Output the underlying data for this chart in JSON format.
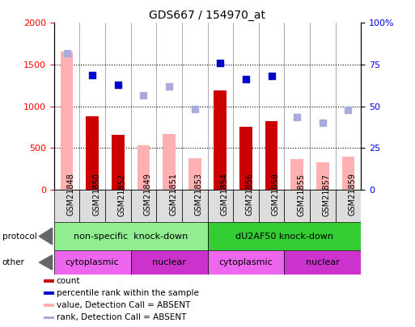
{
  "title": "GDS667 / 154970_at",
  "samples": [
    "GSM21848",
    "GSM21850",
    "GSM21852",
    "GSM21849",
    "GSM21851",
    "GSM21853",
    "GSM21854",
    "GSM21856",
    "GSM21858",
    "GSM21855",
    "GSM21857",
    "GSM21859"
  ],
  "count_values": [
    0,
    880,
    660,
    0,
    0,
    0,
    1190,
    750,
    820,
    0,
    0,
    0
  ],
  "count_absent_values": [
    1650,
    0,
    0,
    530,
    670,
    380,
    0,
    0,
    0,
    370,
    330,
    400
  ],
  "rank_values": [
    0,
    1370,
    1260,
    0,
    0,
    0,
    1520,
    1330,
    1360,
    0,
    0,
    0
  ],
  "rank_absent_values": [
    1640,
    0,
    0,
    1130,
    1240,
    970,
    0,
    0,
    0,
    870,
    800,
    960
  ],
  "ylim_left": [
    0,
    2000
  ],
  "ylim_right": [
    0,
    100
  ],
  "yticks_left": [
    0,
    500,
    1000,
    1500,
    2000
  ],
  "yticks_right": [
    0,
    25,
    50,
    75,
    100
  ],
  "yticklabels_right": [
    "0",
    "25",
    "50",
    "75",
    "100%"
  ],
  "protocol_groups": [
    {
      "label": "non-specific  knock-down",
      "start": 0,
      "end": 6,
      "color": "#90EE90"
    },
    {
      "label": "dU2AF50 knock-down",
      "start": 6,
      "end": 12,
      "color": "#33CC33"
    }
  ],
  "other_groups": [
    {
      "label": "cytoplasmic",
      "start": 0,
      "end": 3,
      "color": "#EE66EE"
    },
    {
      "label": "nuclear",
      "start": 3,
      "end": 6,
      "color": "#CC33CC"
    },
    {
      "label": "cytoplasmic",
      "start": 6,
      "end": 9,
      "color": "#EE66EE"
    },
    {
      "label": "nuclear",
      "start": 9,
      "end": 12,
      "color": "#CC33CC"
    }
  ],
  "bar_width": 0.5,
  "count_color": "#CC0000",
  "count_absent_color": "#FFB0B0",
  "rank_color": "#0000CC",
  "rank_absent_color": "#AAAADD",
  "bg_color": "#FFFFFF",
  "plot_bg": "#FFFFFF",
  "legend_items": [
    {
      "label": "count",
      "color": "#CC0000"
    },
    {
      "label": "percentile rank within the sample",
      "color": "#0000CC"
    },
    {
      "label": "value, Detection Call = ABSENT",
      "color": "#FFB0B0"
    },
    {
      "label": "rank, Detection Call = ABSENT",
      "color": "#AAAADD"
    }
  ],
  "protocol_label": "protocol",
  "other_label": "other"
}
